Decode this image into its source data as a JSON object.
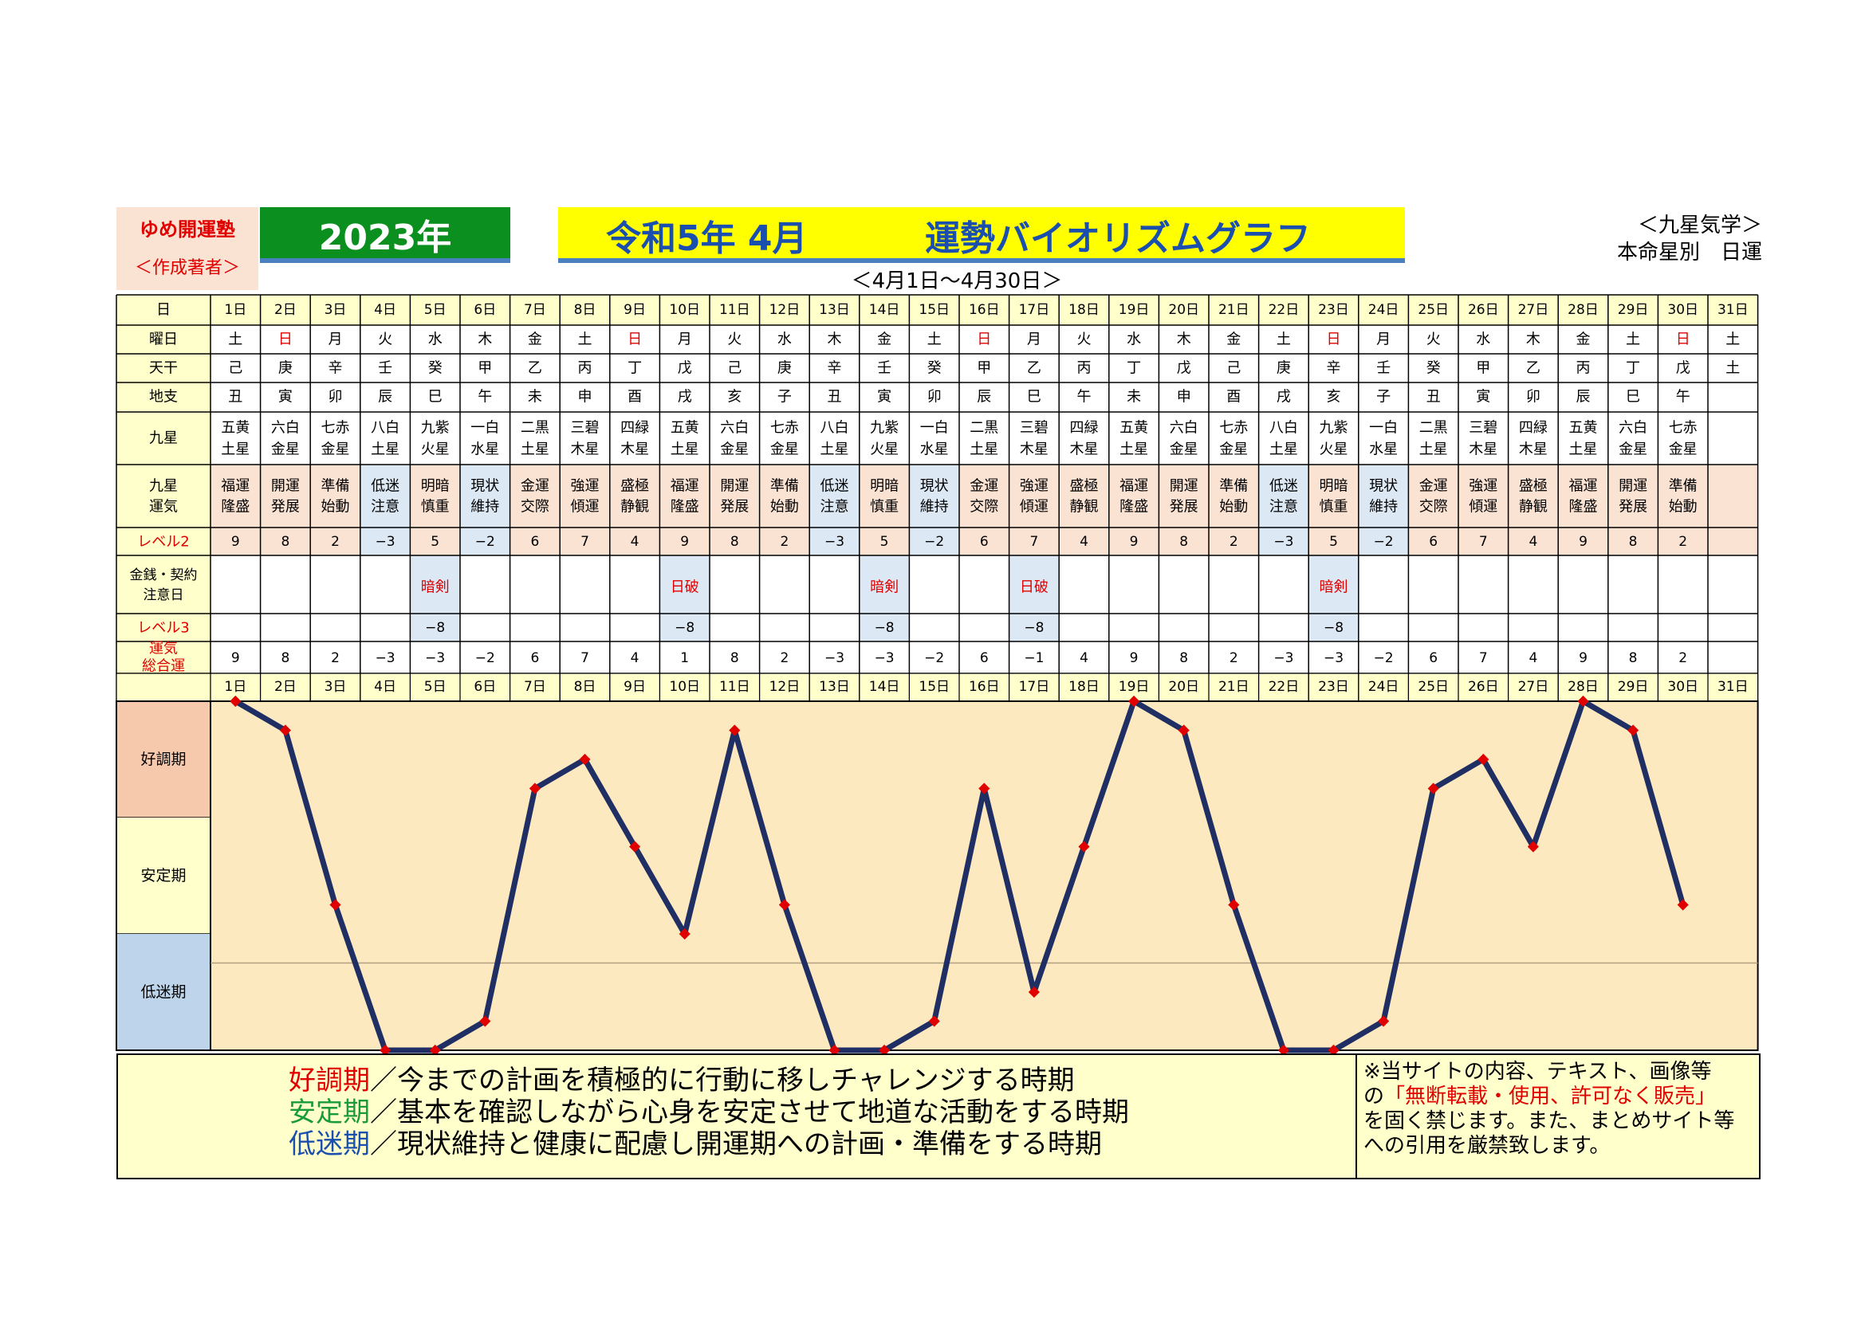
{
  "header": {
    "org_name": "ゆめ開運塾",
    "org_sub": "＜作成著者＞",
    "year": "2023年",
    "title_left": "令和5年 4月",
    "title_right": "運勢バイオリズムグラフ",
    "school": "＜九星気学＞",
    "chart_kind": "本命星別　日運",
    "date_range": "＜4月1日～4月30日＞"
  },
  "table": {
    "row_labels": {
      "day": "日",
      "weekday": "曜日",
      "kan": "天干",
      "shi": "地支",
      "star": "九星",
      "luck": [
        "九星",
        "運気"
      ],
      "level2": "レベル2",
      "caution": [
        "金銭・契約",
        "注意日"
      ],
      "level3": "レベル3",
      "total": [
        "運気",
        "総合運"
      ]
    },
    "days": [
      "1日",
      "2日",
      "3日",
      "4日",
      "5日",
      "6日",
      "7日",
      "8日",
      "9日",
      "10日",
      "11日",
      "12日",
      "13日",
      "14日",
      "15日",
      "16日",
      "17日",
      "18日",
      "19日",
      "20日",
      "21日",
      "22日",
      "23日",
      "24日",
      "25日",
      "26日",
      "27日",
      "28日",
      "29日",
      "30日",
      "31日"
    ],
    "weekdays": [
      "土",
      "日",
      "月",
      "火",
      "水",
      "木",
      "金",
      "土",
      "日",
      "月",
      "火",
      "水",
      "木",
      "金",
      "土",
      "日",
      "月",
      "火",
      "水",
      "木",
      "金",
      "土",
      "日",
      "月",
      "火",
      "水",
      "木",
      "金",
      "土",
      "日",
      "土"
    ],
    "kan": [
      "己",
      "庚",
      "辛",
      "壬",
      "癸",
      "甲",
      "乙",
      "丙",
      "丁",
      "戊",
      "己",
      "庚",
      "辛",
      "壬",
      "癸",
      "甲",
      "乙",
      "丙",
      "丁",
      "戊",
      "己",
      "庚",
      "辛",
      "壬",
      "癸",
      "甲",
      "乙",
      "丙",
      "丁",
      "戊",
      "土"
    ],
    "shi": [
      "丑",
      "寅",
      "卯",
      "辰",
      "巳",
      "午",
      "未",
      "申",
      "酉",
      "戌",
      "亥",
      "子",
      "丑",
      "寅",
      "卯",
      "辰",
      "巳",
      "午",
      "未",
      "申",
      "酉",
      "戌",
      "亥",
      "子",
      "丑",
      "寅",
      "卯",
      "辰",
      "巳",
      "午",
      ""
    ],
    "stars": [
      [
        "五黄",
        "土星"
      ],
      [
        "六白",
        "金星"
      ],
      [
        "七赤",
        "金星"
      ],
      [
        "八白",
        "土星"
      ],
      [
        "九紫",
        "火星"
      ],
      [
        "一白",
        "水星"
      ],
      [
        "二黒",
        "土星"
      ],
      [
        "三碧",
        "木星"
      ],
      [
        "四緑",
        "木星"
      ],
      [
        "五黄",
        "土星"
      ],
      [
        "六白",
        "金星"
      ],
      [
        "七赤",
        "金星"
      ],
      [
        "八白",
        "土星"
      ],
      [
        "九紫",
        "火星"
      ],
      [
        "一白",
        "水星"
      ],
      [
        "二黒",
        "土星"
      ],
      [
        "三碧",
        "木星"
      ],
      [
        "四緑",
        "木星"
      ],
      [
        "五黄",
        "土星"
      ],
      [
        "六白",
        "金星"
      ],
      [
        "七赤",
        "金星"
      ],
      [
        "八白",
        "土星"
      ],
      [
        "九紫",
        "火星"
      ],
      [
        "一白",
        "水星"
      ],
      [
        "二黒",
        "土星"
      ],
      [
        "三碧",
        "木星"
      ],
      [
        "四緑",
        "木星"
      ],
      [
        "五黄",
        "土星"
      ],
      [
        "六白",
        "金星"
      ],
      [
        "七赤",
        "金星"
      ],
      [
        "",
        ""
      ]
    ],
    "luck": [
      [
        "福運",
        "隆盛"
      ],
      [
        "開運",
        "発展"
      ],
      [
        "準備",
        "始動"
      ],
      [
        "低迷",
        "注意"
      ],
      [
        "明暗",
        "慎重"
      ],
      [
        "現状",
        "維持"
      ],
      [
        "金運",
        "交際"
      ],
      [
        "強運",
        "傾運"
      ],
      [
        "盛極",
        "静観"
      ],
      [
        "福運",
        "隆盛"
      ],
      [
        "開運",
        "発展"
      ],
      [
        "準備",
        "始動"
      ],
      [
        "低迷",
        "注意"
      ],
      [
        "明暗",
        "慎重"
      ],
      [
        "現状",
        "維持"
      ],
      [
        "金運",
        "交際"
      ],
      [
        "強運",
        "傾運"
      ],
      [
        "盛極",
        "静観"
      ],
      [
        "福運",
        "隆盛"
      ],
      [
        "開運",
        "発展"
      ],
      [
        "準備",
        "始動"
      ],
      [
        "低迷",
        "注意"
      ],
      [
        "明暗",
        "慎重"
      ],
      [
        "現状",
        "維持"
      ],
      [
        "金運",
        "交際"
      ],
      [
        "強運",
        "傾運"
      ],
      [
        "盛極",
        "静観"
      ],
      [
        "福運",
        "隆盛"
      ],
      [
        "開運",
        "発展"
      ],
      [
        "準備",
        "始動"
      ],
      [
        "",
        ""
      ]
    ],
    "level2": [
      "9",
      "8",
      "2",
      "−3",
      "5",
      "−2",
      "6",
      "7",
      "4",
      "9",
      "8",
      "2",
      "−3",
      "5",
      "−2",
      "6",
      "7",
      "4",
      "9",
      "8",
      "2",
      "−3",
      "5",
      "−2",
      "6",
      "7",
      "4",
      "9",
      "8",
      "2",
      ""
    ],
    "caution": [
      "",
      "",
      "",
      "",
      "暗剣",
      "",
      "",
      "",
      "",
      "日破",
      "",
      "",
      "",
      "暗剣",
      "",
      "",
      "日破",
      "",
      "",
      "",
      "",
      "",
      "暗剣",
      "",
      "",
      "",
      "",
      "",
      "",
      "",
      ""
    ],
    "level3": [
      "",
      "",
      "",
      "",
      "−8",
      "",
      "",
      "",
      "",
      "−8",
      "",
      "",
      "",
      "−8",
      "",
      "",
      "−8",
      "",
      "",
      "",
      "",
      "",
      "−8",
      "",
      "",
      "",
      "",
      "",
      "",
      "",
      ""
    ],
    "total": [
      "9",
      "8",
      "2",
      "−3",
      "−3",
      "−2",
      "6",
      "7",
      "4",
      "1",
      "8",
      "2",
      "−3",
      "−3",
      "−2",
      "6",
      "−1",
      "4",
      "9",
      "8",
      "2",
      "−3",
      "−3",
      "−2",
      "6",
      "7",
      "4",
      "9",
      "8",
      "2",
      ""
    ]
  },
  "zones": {
    "good": "好調期",
    "stable": "安定期",
    "low": "低迷期"
  },
  "legend": {
    "good_name": "好調期",
    "good_text": "／今までの計画を積極的に行動に移しチャレンジする時期",
    "stable_name": "安定期",
    "stable_text": "／基本を確認しながら心身を安定させて地道な活動をする時期",
    "low_name": "低迷期",
    "low_text": "／現状維持と健康に配慮し開運期への計画・準備をする時期"
  },
  "notice": {
    "line1": "※当サイトの内容、テキスト、画像等",
    "line2_pre": "の",
    "line2_red": "「無断転載・使用、許可なく販売」",
    "line3": "を固く禁じます。また、まとめサイト等",
    "line4": "への引用を厳禁致します。"
  },
  "colors": {
    "header_bg": "#ffffcc",
    "luck_bg": "#fbe3d3",
    "low_bg": "#dce8f4",
    "grid": "#000000",
    "line": "#1f2e63",
    "marker": "#e00000",
    "plot_bg": "#fde9c0",
    "zone_good": "#f6c9ad",
    "zone_stable": "#ffffcc",
    "zone_low": "#bdd4ea",
    "good_label": "#e00000",
    "stable_label": "#1a9a3a",
    "low_label": "#1a4fb0"
  },
  "chart_data": {
    "type": "line",
    "title": "運勢バイオリズムグラフ",
    "x": [
      "1日",
      "2日",
      "3日",
      "4日",
      "5日",
      "6日",
      "7日",
      "8日",
      "9日",
      "10日",
      "11日",
      "12日",
      "13日",
      "14日",
      "15日",
      "16日",
      "17日",
      "18日",
      "19日",
      "20日",
      "21日",
      "22日",
      "23日",
      "24日",
      "25日",
      "26日",
      "27日",
      "28日",
      "29日",
      "30日"
    ],
    "series": [
      {
        "values": [
          9,
          8,
          2,
          -3,
          -3,
          -2,
          6,
          7,
          4,
          1,
          8,
          2,
          -3,
          -3,
          -2,
          6,
          -1,
          4,
          9,
          8,
          2,
          -3,
          -3,
          -2,
          6,
          7,
          4,
          9,
          8,
          2
        ]
      }
    ],
    "ylim": [
      -3,
      9
    ],
    "bands": [
      "好調期",
      "安定期",
      "低迷期"
    ],
    "grid": false,
    "legend": "none"
  }
}
